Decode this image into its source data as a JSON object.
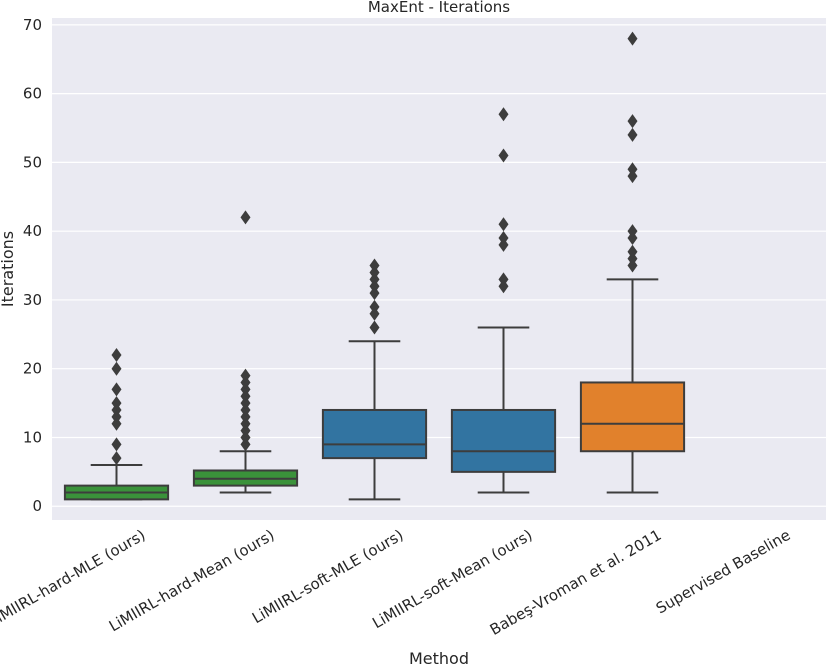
{
  "chart_data": {
    "type": "box",
    "title": "MaxEnt - Iterations",
    "xlabel": "Method",
    "ylabel": "Iterations",
    "ylim": [
      -2,
      71
    ],
    "yticks": [
      0,
      10,
      20,
      30,
      40,
      50,
      60,
      70
    ],
    "grid": true,
    "categories": [
      "LiMIIRL-hard-MLE (ours)",
      "LiMIIRL-hard-Mean (ours)",
      "LiMIIRL-soft-MLE (ours)",
      "LiMIIRL-soft-Mean (ours)",
      "Babeş-Vroman et al. 2011",
      "Supervised Baseline"
    ],
    "boxes": [
      {
        "color": "#3a923a",
        "whislo": 1,
        "q1": 1,
        "med": 2,
        "q3": 3,
        "whishi": 6,
        "fliers": [
          7,
          9,
          12,
          13,
          14,
          15,
          17,
          20,
          22
        ]
      },
      {
        "color": "#3a923a",
        "whislo": 2,
        "q1": 3,
        "med": 4,
        "q3": 5.2,
        "whishi": 8,
        "fliers": [
          9,
          10,
          11,
          12,
          13,
          14,
          15,
          16,
          17,
          18,
          19,
          42
        ]
      },
      {
        "color": "#3274a1",
        "whislo": 1,
        "q1": 7,
        "med": 9,
        "q3": 14,
        "whishi": 24,
        "fliers": [
          26,
          28,
          29,
          31,
          32,
          33,
          34,
          35
        ]
      },
      {
        "color": "#3274a1",
        "whislo": 2,
        "q1": 5,
        "med": 8,
        "q3": 14,
        "whishi": 26,
        "fliers": [
          32,
          33,
          38,
          39,
          41,
          51,
          57
        ]
      },
      {
        "color": "#e1812c",
        "whislo": 2,
        "q1": 8,
        "med": 12,
        "q3": 18,
        "whishi": 33,
        "fliers": [
          35,
          36,
          37,
          39,
          40,
          48,
          49,
          54,
          56,
          68
        ]
      },
      null
    ]
  },
  "colors": {
    "background": "#eaeaf2",
    "grid": "#ffffff",
    "line": "#3d3d3d",
    "text": "#262626"
  }
}
